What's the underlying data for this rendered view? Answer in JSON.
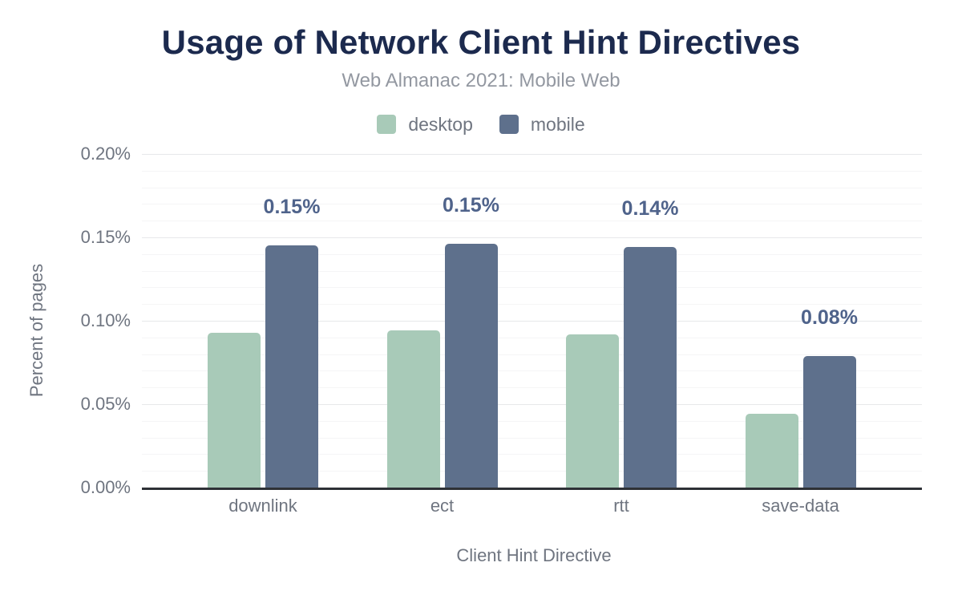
{
  "chart_data": {
    "type": "bar",
    "title": "Usage of Network Client Hint Directives",
    "subtitle": "Web Almanac 2021: Mobile Web",
    "xlabel": "Client Hint Directive",
    "ylabel": "Percent of pages",
    "categories": [
      "downlink",
      "ect",
      "rtt",
      "save-data"
    ],
    "series": [
      {
        "name": "desktop",
        "color": "#a8cab8",
        "values": [
          0.093,
          0.094,
          0.092,
          0.044
        ]
      },
      {
        "name": "mobile",
        "color": "#5e708c",
        "values": [
          0.145,
          0.146,
          0.144,
          0.079
        ],
        "data_labels": [
          "0.15%",
          "0.15%",
          "0.14%",
          "0.08%"
        ]
      }
    ],
    "ylim": [
      0,
      0.2
    ],
    "yticks": [
      {
        "value": 0.0,
        "label": "0.00%"
      },
      {
        "value": 0.05,
        "label": "0.05%"
      },
      {
        "value": 0.1,
        "label": "0.10%"
      },
      {
        "value": 0.15,
        "label": "0.15%"
      },
      {
        "value": 0.2,
        "label": "0.20%"
      }
    ],
    "grid": {
      "orientation": "horizontal",
      "minor_step": 0.01,
      "major_step": 0.05
    },
    "legend_position": "top",
    "data_label_color": "#4f638b",
    "units": "percent of pages"
  }
}
